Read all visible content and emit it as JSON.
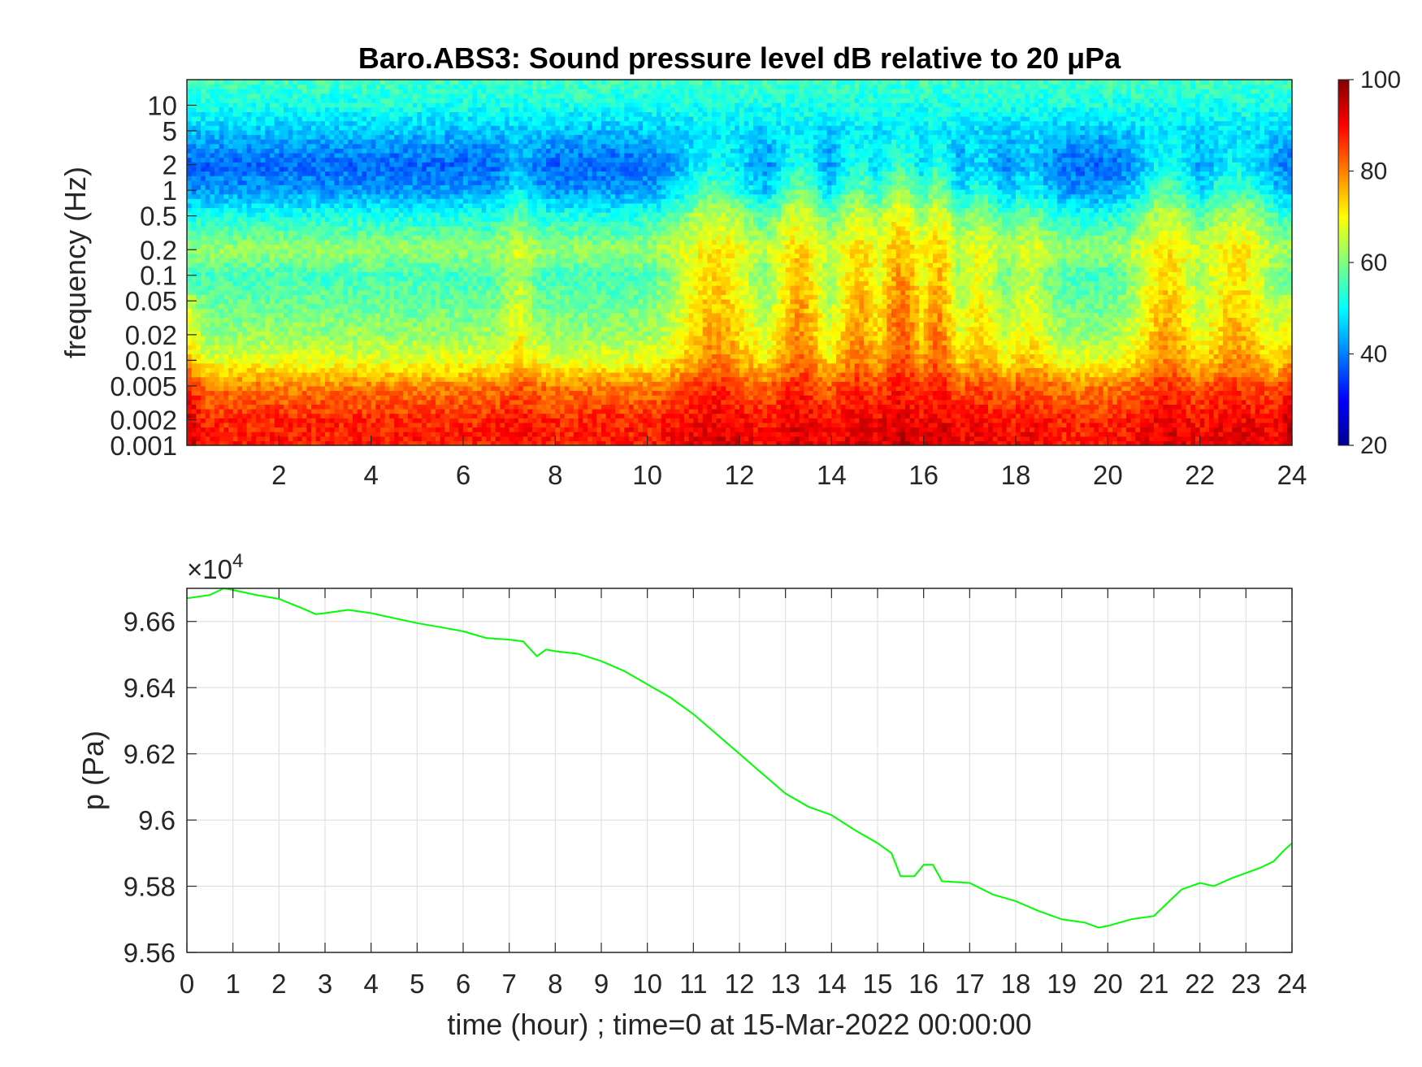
{
  "chart_data": [
    {
      "type": "heatmap",
      "title": "Baro.ABS3: Sound pressure level dB relative to 20 μPa",
      "xlabel": "",
      "ylabel": "frequency (Hz)",
      "x_range_hours": [
        0,
        24
      ],
      "x_ticks": [
        "2",
        "4",
        "6",
        "8",
        "10",
        "12",
        "14",
        "16",
        "18",
        "20",
        "22",
        "24"
      ],
      "y_scale": "log",
      "y_range_hz": [
        0.001,
        20
      ],
      "y_ticks": [
        "10",
        "5",
        "2",
        "1",
        "0.5",
        "0.2",
        "0.1",
        "0.05",
        "0.02",
        "0.01",
        "0.005",
        "0.002",
        "0.001"
      ],
      "colormap": "jet",
      "colorbar": {
        "min": 20,
        "max": 100,
        "ticks": [
          "100",
          "80",
          "60",
          "40",
          "20"
        ]
      },
      "level_profile_db": {
        "frequency_hz": [
          0.001,
          0.002,
          0.005,
          0.01,
          0.02,
          0.05,
          0.1,
          0.2,
          0.5,
          1,
          2,
          5,
          10,
          20
        ],
        "quiet_hours": [
          88,
          87,
          80,
          68,
          62,
          58,
          55,
          62,
          52,
          42,
          38,
          45,
          52,
          55
        ],
        "active_hours": [
          95,
          92,
          88,
          84,
          82,
          80,
          78,
          75,
          70,
          62,
          55,
          50,
          52,
          55
        ]
      },
      "activity_hours": [
        {
          "center": 7.2,
          "width": 0.35,
          "strength": 0.35
        },
        {
          "center": 11.5,
          "width": 0.9,
          "strength": 0.75
        },
        {
          "center": 13.3,
          "width": 0.6,
          "strength": 0.85
        },
        {
          "center": 14.6,
          "width": 0.6,
          "strength": 0.8
        },
        {
          "center": 15.5,
          "width": 0.6,
          "strength": 1.0
        },
        {
          "center": 16.3,
          "width": 0.45,
          "strength": 0.9
        },
        {
          "center": 17.2,
          "width": 0.5,
          "strength": 0.55
        },
        {
          "center": 18.3,
          "width": 0.5,
          "strength": 0.4
        },
        {
          "center": 21.3,
          "width": 0.7,
          "strength": 0.75
        },
        {
          "center": 22.8,
          "width": 0.8,
          "strength": 0.7
        }
      ]
    },
    {
      "type": "line",
      "xlabel": "time (hour) ; time=0 at 15-Mar-2022 00:00:00",
      "ylabel": "p (Pa)",
      "y_multiplier": "×10",
      "y_multiplier_exponent": "4",
      "xlim": [
        0,
        24
      ],
      "ylim": [
        95600,
        96700
      ],
      "x_ticks": [
        "0",
        "1",
        "2",
        "3",
        "4",
        "5",
        "6",
        "7",
        "8",
        "9",
        "10",
        "11",
        "12",
        "13",
        "14",
        "15",
        "16",
        "17",
        "18",
        "19",
        "20",
        "21",
        "22",
        "23",
        "24"
      ],
      "y_ticks": [
        "9.66",
        "9.64",
        "9.62",
        "9.6",
        "9.58",
        "9.56"
      ],
      "grid": true,
      "series": [
        {
          "color": "#00ff00",
          "x": [
            0,
            0.5,
            0.8,
            1.0,
            1.5,
            2.0,
            2.5,
            2.8,
            3.0,
            3.5,
            4.0,
            4.5,
            5.0,
            5.5,
            6.0,
            6.5,
            7.0,
            7.3,
            7.5,
            7.6,
            7.8,
            8.0,
            8.5,
            9.0,
            9.5,
            10.0,
            10.5,
            11.0,
            11.5,
            12.0,
            12.5,
            13.0,
            13.5,
            14.0,
            14.5,
            15.0,
            15.3,
            15.5,
            15.8,
            16.0,
            16.2,
            16.4,
            17.0,
            17.5,
            18.0,
            18.5,
            19.0,
            19.5,
            19.8,
            20.0,
            20.5,
            21.0,
            21.3,
            21.6,
            22.0,
            22.3,
            22.7,
            23.0,
            23.3,
            23.6,
            23.8,
            24.0
          ],
          "y": [
            96670,
            96680,
            96700,
            96695,
            96680,
            96668,
            96640,
            96622,
            96625,
            96635,
            96625,
            96610,
            96595,
            96583,
            96570,
            96550,
            96545,
            96540,
            96510,
            96495,
            96515,
            96510,
            96502,
            96480,
            96450,
            96410,
            96370,
            96320,
            96260,
            96200,
            96140,
            96080,
            96040,
            96015,
            95970,
            95930,
            95900,
            95830,
            95830,
            95865,
            95865,
            95815,
            95810,
            95775,
            95755,
            95725,
            95700,
            95690,
            95675,
            95680,
            95700,
            95710,
            95750,
            95790,
            95810,
            95800,
            95825,
            95840,
            95855,
            95875,
            95905,
            95930
          ]
        }
      ]
    }
  ]
}
